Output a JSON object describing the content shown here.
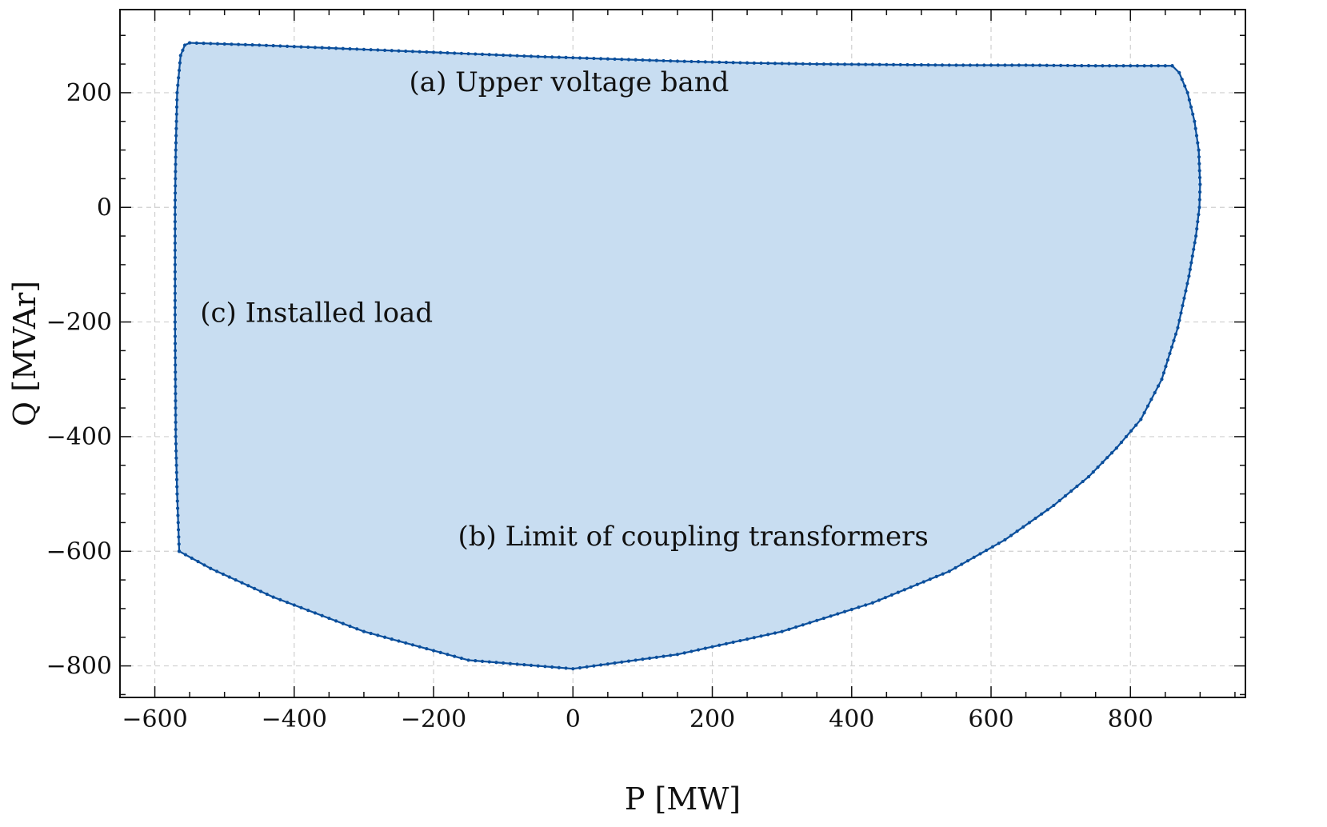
{
  "chart_data": {
    "type": "area",
    "title": "",
    "xlabel": "P [MW]",
    "ylabel": "Q [MVAr]",
    "xlim": [
      -650,
      965
    ],
    "ylim": [
      -855,
      345
    ],
    "xticks": [
      -600,
      -400,
      -200,
      0,
      200,
      400,
      600,
      800
    ],
    "yticks": [
      -800,
      -600,
      -400,
      -200,
      0,
      200
    ],
    "xtick_labels": [
      "−600",
      "−400",
      "−200",
      "0",
      "200",
      "400",
      "600",
      "800"
    ],
    "ytick_labels": [
      "−800",
      "−600",
      "−400",
      "−200",
      "0",
      "200"
    ],
    "grid": true,
    "colors": {
      "line": "#0b4f9c",
      "fill": "#c8ddf1",
      "grid": "#cfcfcf",
      "frame": "#111111"
    },
    "series": [
      {
        "segments": {
          "upper_voltage_band": {
            "x": [
              -550,
              -450,
              -350,
              -250,
              -150,
              -50,
              50,
              150,
              250,
              350,
              450,
              550,
              650,
              750,
              860
            ],
            "y": [
              287,
              283,
              278,
              273,
              268,
              263,
              259,
              255,
              252,
              250,
              249,
              248,
              248,
              247,
              247
            ]
          },
          "right_transformer_limit": {
            "x": [
              860,
              870,
              882,
              892,
              898,
              900,
              899,
              894,
              884,
              868,
              845,
              815,
              780,
              740,
              690,
              620,
              540,
              430,
              300,
              150,
              0,
              -150,
              -300,
              -430,
              -520,
              -565
            ],
            "y": [
              247,
              235,
              200,
              150,
              100,
              40,
              0,
              -50,
              -120,
              -210,
              -300,
              -370,
              -420,
              -470,
              -520,
              -580,
              -635,
              -690,
              -740,
              -780,
              -805,
              -790,
              -740,
              -680,
              -630,
              -600
            ]
          },
          "installed_load": {
            "x": [
              -565,
              -568,
              -570,
              -571,
              -571,
              -570,
              -568,
              -563,
              -557,
              -550
            ],
            "y": [
              -600,
              -500,
              -400,
              -200,
              0,
              100,
              200,
              265,
              283,
              287
            ]
          }
        }
      }
    ],
    "annotations": [
      {
        "text": "(a) Upper voltage band",
        "x": -235,
        "y": 203
      },
      {
        "text": "(c) Installed load",
        "x": -535,
        "y": -200
      },
      {
        "text": "(b) Limit of coupling transformers",
        "x": -165,
        "y": -590
      }
    ]
  }
}
